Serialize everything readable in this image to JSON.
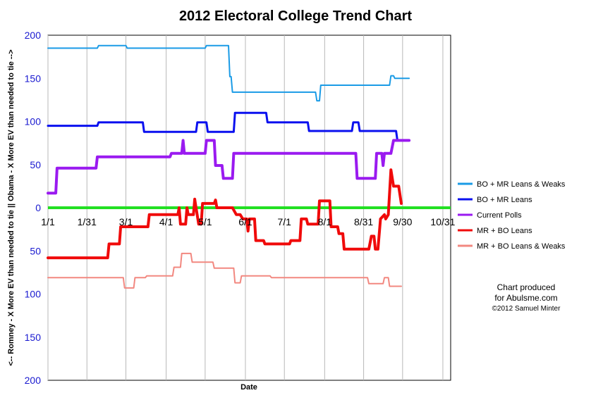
{
  "chart_data": {
    "type": "line",
    "title": "2012 Electoral College Trend Chart",
    "xlabel": "Date",
    "ylabel": "<-- Romney - X More EV than needed to tie || Obama - X More EV than needed to tie -->",
    "x_ticks": [
      "1/1",
      "1/31",
      "3/1",
      "4/1",
      "5/1",
      "6/1",
      "7/1",
      "8/1",
      "8/31",
      "9/30",
      "10/31"
    ],
    "x_tick_days": [
      0,
      30,
      60,
      91,
      121,
      152,
      182,
      213,
      243,
      273,
      304
    ],
    "xlim_days": [
      0,
      310
    ],
    "y_tick_labels": [
      "200",
      "150",
      "100",
      "50",
      "0",
      "50",
      "100",
      "150",
      "200"
    ],
    "y_tick_values": [
      200,
      150,
      100,
      50,
      0,
      -50,
      -100,
      -150,
      -200
    ],
    "ylim": [
      -200,
      200
    ],
    "grid": "vertical lines at x ticks",
    "legend_position": "right",
    "zero_line_color": "#22e022",
    "series": [
      {
        "name": "BO + MR Leans & Weaks",
        "color": "#1a9be6",
        "points": [
          [
            0,
            185
          ],
          [
            38,
            185
          ],
          [
            39,
            188
          ],
          [
            60,
            188
          ],
          [
            61,
            185
          ],
          [
            121,
            185
          ],
          [
            122,
            188
          ],
          [
            139,
            188
          ],
          [
            140,
            152
          ],
          [
            141,
            152
          ],
          [
            142,
            134
          ],
          [
            197,
            134
          ],
          [
            206,
            134
          ],
          [
            207,
            124
          ],
          [
            209,
            124
          ],
          [
            210,
            142
          ],
          [
            263,
            142
          ],
          [
            264,
            153
          ],
          [
            266,
            153
          ],
          [
            267,
            150
          ],
          [
            271,
            150
          ],
          [
            272,
            150
          ],
          [
            278,
            150
          ]
        ]
      },
      {
        "name": "BO + MR Leans",
        "color": "#0a10ef",
        "points": [
          [
            0,
            95
          ],
          [
            38,
            95
          ],
          [
            39,
            99
          ],
          [
            73,
            99
          ],
          [
            74,
            88
          ],
          [
            114,
            88
          ],
          [
            115,
            99
          ],
          [
            122,
            99
          ],
          [
            123,
            88
          ],
          [
            143,
            88
          ],
          [
            144,
            110
          ],
          [
            168,
            110
          ],
          [
            169,
            99
          ],
          [
            200,
            99
          ],
          [
            201,
            89
          ],
          [
            234,
            89
          ],
          [
            235,
            99
          ],
          [
            239,
            99
          ],
          [
            240,
            89
          ],
          [
            268,
            89
          ],
          [
            269,
            78
          ],
          [
            278,
            78
          ]
        ]
      },
      {
        "name": "Current Polls",
        "color": "#9a1af0",
        "points": [
          [
            0,
            17
          ],
          [
            6,
            17
          ],
          [
            7,
            46
          ],
          [
            37,
            46
          ],
          [
            38,
            59
          ],
          [
            94,
            59
          ],
          [
            95,
            63
          ],
          [
            103,
            63
          ],
          [
            104,
            78
          ],
          [
            105,
            63
          ],
          [
            121,
            63
          ],
          [
            122,
            78
          ],
          [
            128,
            78
          ],
          [
            129,
            49
          ],
          [
            134,
            49
          ],
          [
            135,
            34
          ],
          [
            142,
            34
          ],
          [
            143,
            63
          ],
          [
            237,
            63
          ],
          [
            238,
            34
          ],
          [
            252,
            34
          ],
          [
            253,
            63
          ],
          [
            257,
            63
          ],
          [
            258,
            49
          ],
          [
            259,
            63
          ],
          [
            263,
            63
          ],
          [
            264,
            63
          ],
          [
            266,
            78
          ],
          [
            278,
            78
          ]
        ]
      },
      {
        "name": "MR + BO Leans",
        "color": "#f00a0a",
        "points": [
          [
            0,
            -58
          ],
          [
            46,
            -58
          ],
          [
            47,
            -42
          ],
          [
            55,
            -42
          ],
          [
            56,
            -22
          ],
          [
            77,
            -22
          ],
          [
            78,
            -8
          ],
          [
            100,
            -8
          ],
          [
            101,
            0
          ],
          [
            102,
            -19
          ],
          [
            106,
            -19
          ],
          [
            107,
            0
          ],
          [
            108,
            -8
          ],
          [
            112,
            -8
          ],
          [
            113,
            10
          ],
          [
            114,
            0
          ],
          [
            116,
            -19
          ],
          [
            118,
            -19
          ],
          [
            119,
            5
          ],
          [
            128,
            5
          ],
          [
            129,
            9
          ],
          [
            130,
            0
          ],
          [
            142,
            0
          ],
          [
            145,
            -8
          ],
          [
            148,
            -8
          ],
          [
            150,
            -13
          ],
          [
            153,
            -13
          ],
          [
            154,
            -27
          ],
          [
            155,
            -13
          ],
          [
            159,
            -13
          ],
          [
            160,
            -38
          ],
          [
            166,
            -38
          ],
          [
            167,
            -42
          ],
          [
            186,
            -42
          ],
          [
            187,
            -38
          ],
          [
            194,
            -38
          ],
          [
            195,
            -13
          ],
          [
            199,
            -13
          ],
          [
            200,
            -19
          ],
          [
            208,
            -19
          ],
          [
            209,
            8
          ],
          [
            217,
            8
          ],
          [
            218,
            -22
          ],
          [
            223,
            -22
          ],
          [
            224,
            -30
          ],
          [
            227,
            -30
          ],
          [
            228,
            -48
          ],
          [
            247,
            -48
          ],
          [
            249,
            -33
          ],
          [
            251,
            -33
          ],
          [
            252,
            -48
          ],
          [
            254,
            -48
          ],
          [
            256,
            -13
          ],
          [
            259,
            -8
          ],
          [
            260,
            -13
          ],
          [
            262,
            -8
          ],
          [
            264,
            44
          ],
          [
            266,
            25
          ],
          [
            270,
            25
          ],
          [
            272,
            5
          ]
        ]
      },
      {
        "name": "MR + BO Leans & Weaks",
        "color": "#f28880",
        "points": [
          [
            0,
            -81
          ],
          [
            58,
            -81
          ],
          [
            59,
            -93
          ],
          [
            66,
            -93
          ],
          [
            67,
            -81
          ],
          [
            75,
            -81
          ],
          [
            76,
            -79
          ],
          [
            96,
            -79
          ],
          [
            97,
            -69
          ],
          [
            102,
            -69
          ],
          [
            103,
            -53
          ],
          [
            110,
            -53
          ],
          [
            111,
            -63
          ],
          [
            127,
            -63
          ],
          [
            128,
            -70
          ],
          [
            143,
            -70
          ],
          [
            144,
            -87
          ],
          [
            148,
            -87
          ],
          [
            149,
            -79
          ],
          [
            171,
            -79
          ],
          [
            172,
            -81
          ],
          [
            214,
            -81
          ],
          [
            246,
            -81
          ],
          [
            247,
            -88
          ],
          [
            258,
            -88
          ],
          [
            259,
            -81
          ],
          [
            262,
            -81
          ],
          [
            263,
            -91
          ],
          [
            272,
            -91
          ]
        ]
      }
    ],
    "annotation_lines": [
      "Chart produced",
      "for Abulsme.com",
      "©2012 Samuel Minter"
    ]
  }
}
